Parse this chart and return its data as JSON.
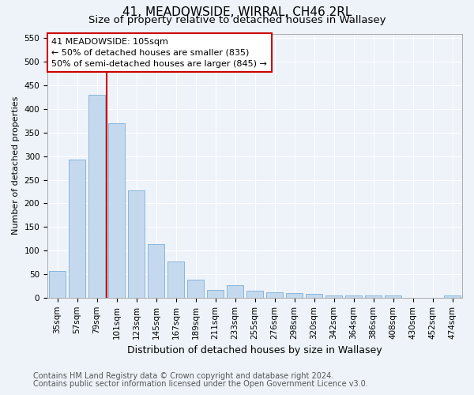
{
  "title1": "41, MEADOWSIDE, WIRRAL, CH46 2RL",
  "title2": "Size of property relative to detached houses in Wallasey",
  "xlabel": "Distribution of detached houses by size in Wallasey",
  "ylabel": "Number of detached properties",
  "categories": [
    "35sqm",
    "57sqm",
    "79sqm",
    "101sqm",
    "123sqm",
    "145sqm",
    "167sqm",
    "189sqm",
    "211sqm",
    "233sqm",
    "255sqm",
    "276sqm",
    "298sqm",
    "320sqm",
    "342sqm",
    "364sqm",
    "386sqm",
    "408sqm",
    "430sqm",
    "452sqm",
    "474sqm"
  ],
  "values": [
    57,
    293,
    430,
    370,
    227,
    113,
    76,
    38,
    17,
    27,
    15,
    11,
    10,
    8,
    5,
    5,
    5,
    5,
    0,
    0,
    5
  ],
  "bar_color": "#c5d9ee",
  "bar_edge_color": "#7aafd4",
  "vline_x": 2.5,
  "vline_color": "#cc0000",
  "annotation_text": "41 MEADOWSIDE: 105sqm\n← 50% of detached houses are smaller (835)\n50% of semi-detached houses are larger (845) →",
  "annotation_box_color": "#ffffff",
  "annotation_box_edge": "#cc0000",
  "ylim": [
    0,
    560
  ],
  "yticks": [
    0,
    50,
    100,
    150,
    200,
    250,
    300,
    350,
    400,
    450,
    500,
    550
  ],
  "footer1": "Contains HM Land Registry data © Crown copyright and database right 2024.",
  "footer2": "Contains public sector information licensed under the Open Government Licence v3.0.",
  "bg_color": "#eef3fa",
  "plot_bg_color": "#eef3fa",
  "title1_fontsize": 11,
  "title2_fontsize": 9.5,
  "xlabel_fontsize": 9,
  "ylabel_fontsize": 8,
  "tick_fontsize": 7.5,
  "footer_fontsize": 7,
  "annot_fontsize": 8
}
